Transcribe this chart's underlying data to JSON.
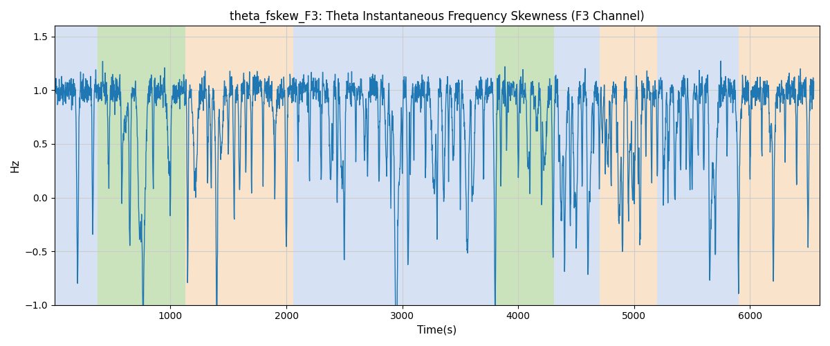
{
  "title": "theta_fskew_F3: Theta Instantaneous Frequency Skewness (F3 Channel)",
  "xlabel": "Time(s)",
  "ylabel": "Hz",
  "xlim": [
    0,
    6600
  ],
  "ylim": [
    -1.0,
    1.6
  ],
  "yticks": [
    -1.0,
    -0.5,
    0.0,
    0.5,
    1.0,
    1.5
  ],
  "xticks": [
    1000,
    2000,
    3000,
    4000,
    5000,
    6000
  ],
  "line_color": "#1f77b4",
  "line_width": 1.0,
  "bg_color": "#ffffff",
  "grid_color": "#cccccc",
  "figsize": [
    12,
    5
  ],
  "dpi": 100,
  "background_bands": [
    {
      "xmin": 0,
      "xmax": 370,
      "color": "#aec6e8",
      "alpha": 0.5
    },
    {
      "xmin": 370,
      "xmax": 1130,
      "color": "#98c97a",
      "alpha": 0.5
    },
    {
      "xmin": 1130,
      "xmax": 2060,
      "color": "#f5c897",
      "alpha": 0.5
    },
    {
      "xmin": 2060,
      "xmax": 3700,
      "color": "#aec6e8",
      "alpha": 0.5
    },
    {
      "xmin": 3700,
      "xmax": 3800,
      "color": "#aec6e8",
      "alpha": 0.5
    },
    {
      "xmin": 3800,
      "xmax": 4310,
      "color": "#98c97a",
      "alpha": 0.5
    },
    {
      "xmin": 4310,
      "xmax": 4700,
      "color": "#aec6e8",
      "alpha": 0.5
    },
    {
      "xmin": 4700,
      "xmax": 5200,
      "color": "#f5c897",
      "alpha": 0.5
    },
    {
      "xmin": 5200,
      "xmax": 5900,
      "color": "#aec6e8",
      "alpha": 0.5
    },
    {
      "xmin": 5900,
      "xmax": 6600,
      "color": "#f5c897",
      "alpha": 0.5
    }
  ],
  "seed": 42
}
